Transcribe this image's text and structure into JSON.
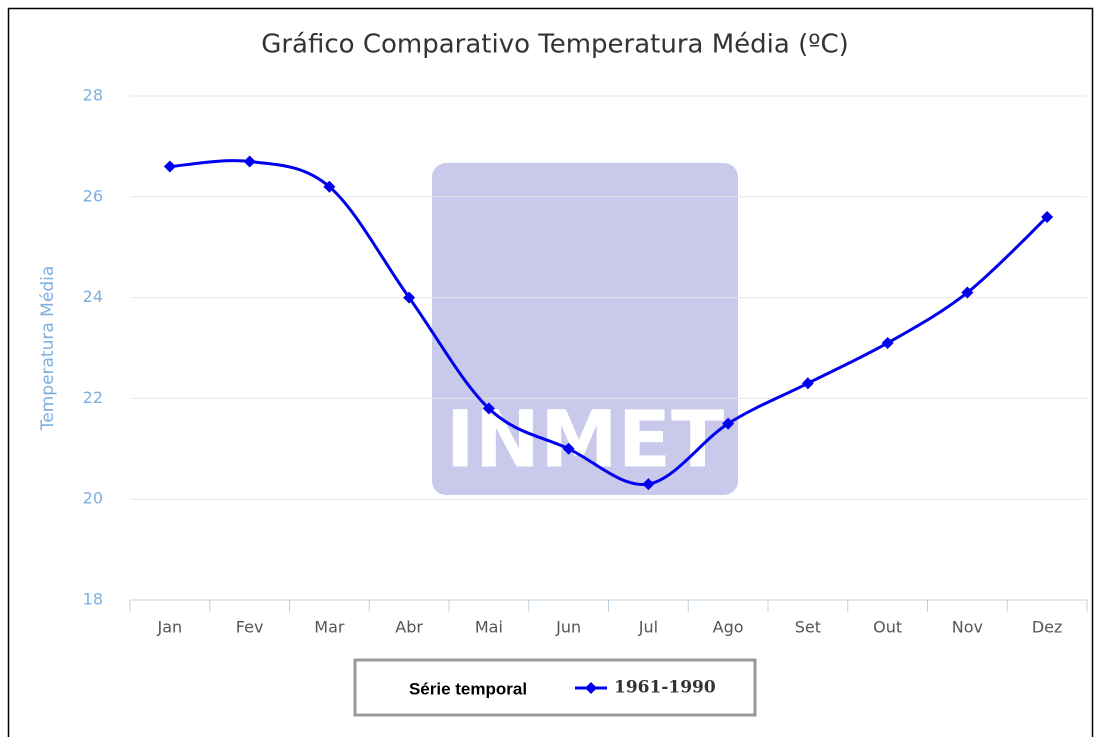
{
  "chart_data": {
    "type": "line",
    "title": "Gráfico Comparativo Temperatura Média (ºC)",
    "y_label": "Temperatura Média",
    "watermark": "INMET",
    "categories": [
      "Jan",
      "Fev",
      "Mar",
      "Abr",
      "Mai",
      "Jun",
      "Jul",
      "Ago",
      "Set",
      "Out",
      "Nov",
      "Dez"
    ],
    "series": [
      {
        "name": "1961-1990",
        "color": "#0000ee",
        "values": [
          26.6,
          26.7,
          26.2,
          24.0,
          21.8,
          21.0,
          20.3,
          21.5,
          22.3,
          23.1,
          24.1,
          25.6
        ]
      }
    ],
    "legend_title": "Série temporal",
    "ylim": [
      18,
      28
    ],
    "yticks": [
      18,
      20,
      22,
      24,
      26,
      28
    ],
    "grid": true,
    "smooth": true
  }
}
